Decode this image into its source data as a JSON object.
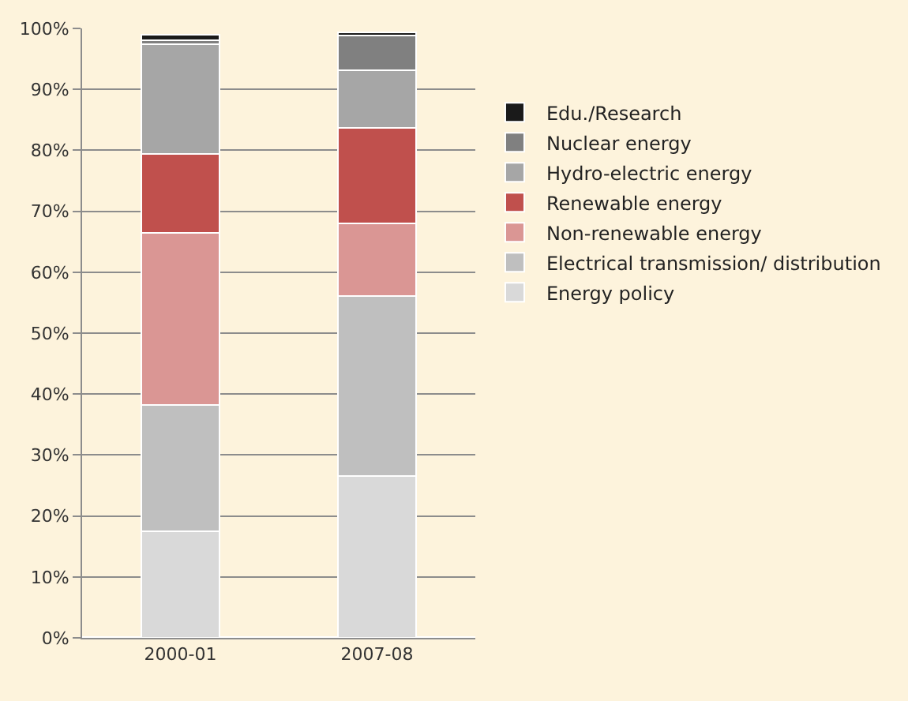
{
  "chart_data": {
    "type": "bar",
    "stacked": true,
    "categories": [
      "2000-01",
      "2007-08"
    ],
    "series": [
      {
        "name": "Energy policy",
        "color": "#d9d9d9",
        "values": [
          17.5,
          26.6
        ]
      },
      {
        "name": "Electrical transmission/ distribution",
        "color": "#bfbfbf",
        "values": [
          20.7,
          29.5
        ]
      },
      {
        "name": "Non-renewable energy",
        "color": "#da9694",
        "values": [
          28.3,
          11.9
        ]
      },
      {
        "name": "Renewable energy",
        "color": "#c0504d",
        "values": [
          12.9,
          15.7
        ]
      },
      {
        "name": "Hydro-electric energy",
        "color": "#a6a6a6",
        "values": [
          18.0,
          9.5
        ]
      },
      {
        "name": "Nuclear energy",
        "color": "#808080",
        "values": [
          0.7,
          5.7
        ]
      },
      {
        "name": "Edu./Research",
        "color": "#1a1a1a",
        "values": [
          0.9,
          0.5
        ]
      }
    ],
    "ylim": [
      0,
      100
    ],
    "yticks": [
      {
        "value": 0,
        "label": "0%"
      },
      {
        "value": 10,
        "label": "10%"
      },
      {
        "value": 20,
        "label": "20%"
      },
      {
        "value": 30,
        "label": "30%"
      },
      {
        "value": 40,
        "label": "40%"
      },
      {
        "value": 50,
        "label": "50%"
      },
      {
        "value": 60,
        "label": "60%"
      },
      {
        "value": 70,
        "label": "70%"
      },
      {
        "value": 80,
        "label": "80%"
      },
      {
        "value": 90,
        "label": "90%"
      },
      {
        "value": 100,
        "label": "100%"
      }
    ],
    "grid": "y",
    "legend": "right"
  }
}
